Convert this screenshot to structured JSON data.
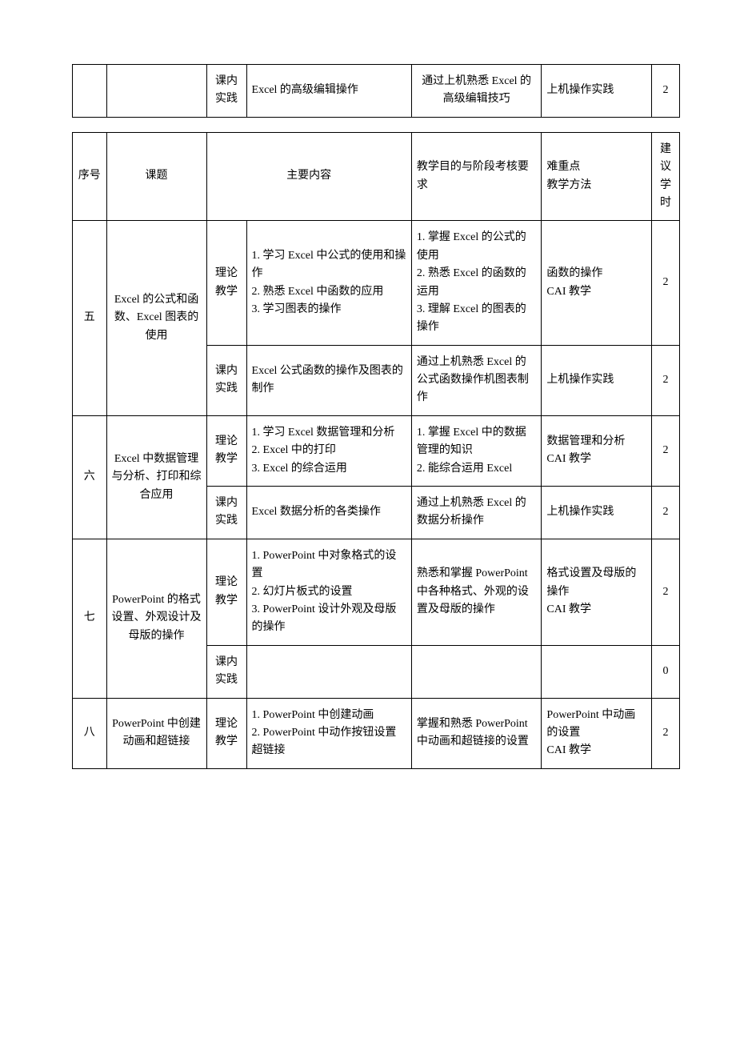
{
  "top_table": {
    "row": {
      "type": "课内实践",
      "content": "Excel 的高级编辑操作",
      "goal": "通过上机熟悉 Excel 的高级编辑技巧",
      "method": "上机操作实践",
      "hours": "2"
    }
  },
  "main_table": {
    "headers": {
      "seq": "序号",
      "topic": "课题",
      "content": "主要内容",
      "goal": "教学目的与阶段考核要求",
      "method": "难重点\n教学方法",
      "hours": "建议学时"
    },
    "rows": [
      {
        "seq": "五",
        "topic": "Excel 的公式和函数、Excel 图表的使用",
        "theory": {
          "type": "理论教学",
          "content": "1. 学习 Excel 中公式的使用和操作\n2. 熟悉 Excel 中函数的应用\n3. 学习图表的操作",
          "goal": "1. 掌握 Excel 的公式的使用\n2. 熟悉 Excel 的函数的运用\n3. 理解 Excel 的图表的操作",
          "method": "函数的操作\nCAI 教学",
          "hours": "2"
        },
        "practice": {
          "type": "课内实践",
          "content": "Excel 公式函数的操作及图表的制作",
          "goal": "通过上机熟悉 Excel 的公式函数操作机图表制作",
          "method": "上机操作实践",
          "hours": "2"
        }
      },
      {
        "seq": "六",
        "topic": "Excel 中数据管理与分析、打印和综合应用",
        "theory": {
          "type": "理论教学",
          "content": "1. 学习 Excel 数据管理和分析\n2. Excel 中的打印\n3. Excel 的综合运用",
          "goal": "1. 掌握 Excel 中的数据管理的知识\n2. 能综合运用 Excel",
          "method": "数据管理和分析\nCAI 教学",
          "hours": "2"
        },
        "practice": {
          "type": "课内实践",
          "content": "Excel 数据分析的各类操作",
          "goal": "通过上机熟悉 Excel 的数据分析操作",
          "method": "上机操作实践",
          "hours": "2"
        }
      },
      {
        "seq": "七",
        "topic": "PowerPoint 的格式设置、外观设计及母版的操作",
        "theory": {
          "type": "理论教学",
          "content": "1. PowerPoint 中对象格式的设置\n2. 幻灯片板式的设置\n3. PowerPoint 设计外观及母版的操作",
          "goal": "熟悉和掌握 PowerPoint 中各种格式、外观的设置及母版的操作",
          "method": "格式设置及母版的操作\nCAI 教学",
          "hours": "2"
        },
        "practice": {
          "type": "课内实践",
          "content": "",
          "goal": "",
          "method": "",
          "hours": "0"
        }
      },
      {
        "seq": "八",
        "topic": "PowerPoint 中创建动画和超链接",
        "theory": {
          "type": "理论教学",
          "content": "1. PowerPoint 中创建动画\n2. PowerPoint 中动作按钮设置超链接",
          "goal": "掌握和熟悉 PowerPoint 中动画和超链接的设置",
          "method": "PowerPoint 中动画的设置\nCAI 教学",
          "hours": "2"
        }
      }
    ]
  }
}
